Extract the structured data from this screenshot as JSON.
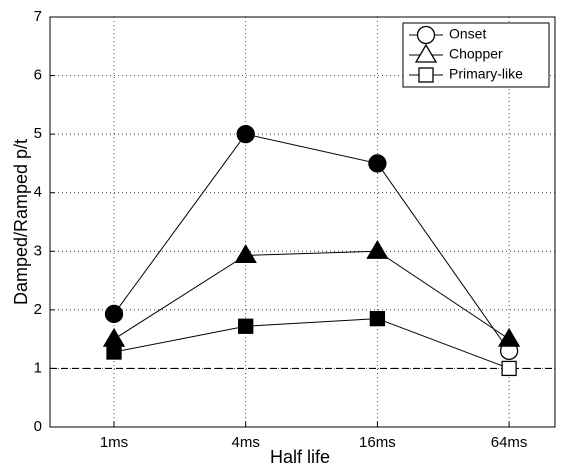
{
  "chart_data": {
    "type": "line",
    "xlabel": "Half life",
    "ylabel": "Damped/Ramped p/t",
    "categories": [
      "1ms",
      "4ms",
      "16ms",
      "64ms"
    ],
    "ylim": [
      0,
      7
    ],
    "yticks": [
      0,
      1,
      2,
      3,
      4,
      5,
      6,
      7
    ],
    "grid": true,
    "legend": "upper right",
    "reference_line": 1,
    "series": [
      {
        "name": "Onset",
        "color": "#000000",
        "marker": "circle",
        "values": [
          1.93,
          5.0,
          4.5,
          1.3
        ],
        "open": [
          false,
          false,
          false,
          true
        ]
      },
      {
        "name": "Chopper",
        "color": "#000000",
        "marker": "triangle",
        "values": [
          1.5,
          2.93,
          3.0,
          1.5
        ],
        "open": [
          false,
          false,
          false,
          false
        ]
      },
      {
        "name": "Primary-like",
        "color": "#000000",
        "marker": "square",
        "values": [
          1.28,
          1.72,
          1.85,
          1.0
        ],
        "open": [
          false,
          false,
          false,
          true
        ]
      }
    ]
  }
}
